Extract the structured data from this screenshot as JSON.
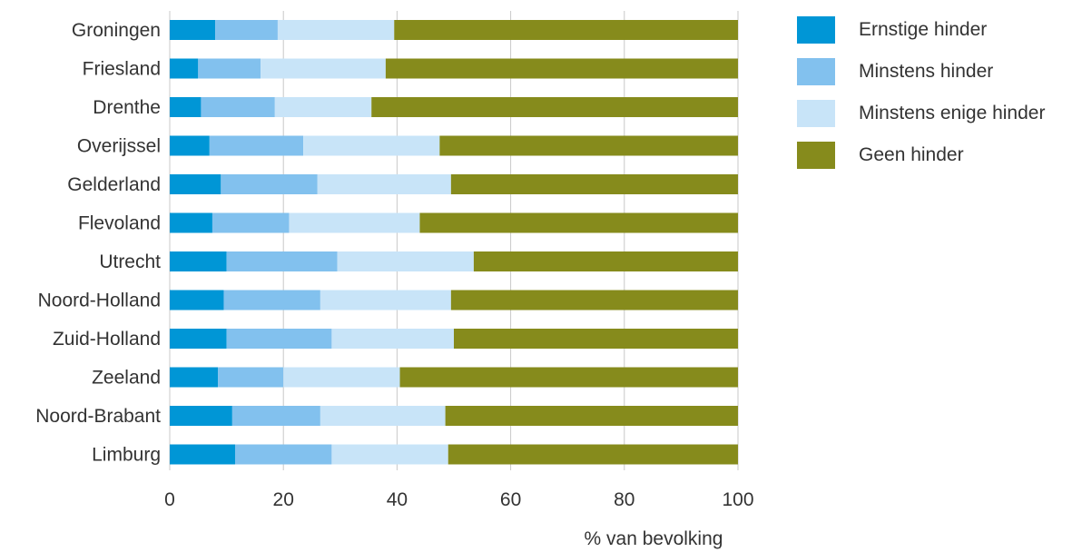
{
  "chart_data": {
    "type": "bar",
    "orientation": "horizontal",
    "stacked": true,
    "categories": [
      "Groningen",
      "Friesland",
      "Drenthe",
      "Overijssel",
      "Gelderland",
      "Flevoland",
      "Utrecht",
      "Noord-Holland",
      "Zuid-Holland",
      "Zeeland",
      "Noord-Brabant",
      "Limburg"
    ],
    "series": [
      {
        "name": "Ernstige hinder",
        "color": "#0096d6",
        "values": [
          8,
          5,
          5.5,
          7,
          9,
          7.5,
          10,
          9.5,
          10,
          8.5,
          11,
          11.5
        ]
      },
      {
        "name": "Minstens hinder",
        "color": "#82c1ee",
        "values": [
          11,
          11,
          13,
          16.5,
          17,
          13.5,
          19.5,
          17,
          18.5,
          11.5,
          15.5,
          17
        ]
      },
      {
        "name": "Minstens enige hinder",
        "color": "#c8e4f8",
        "values": [
          20.5,
          22,
          17,
          24,
          23.5,
          23,
          24,
          23,
          21.5,
          20.5,
          22,
          20.5
        ]
      },
      {
        "name": "Geen hinder",
        "color": "#868b1c",
        "values": [
          60.5,
          62,
          64.5,
          52.5,
          50.5,
          56,
          46.5,
          50.5,
          50,
          59.5,
          51.5,
          51
        ]
      }
    ],
    "xlabel": "% van bevolking",
    "xlim": [
      0,
      100
    ],
    "xticks": [
      "0",
      "20",
      "40",
      "60",
      "80",
      "100"
    ],
    "grid": "vertical",
    "legend": "right"
  }
}
